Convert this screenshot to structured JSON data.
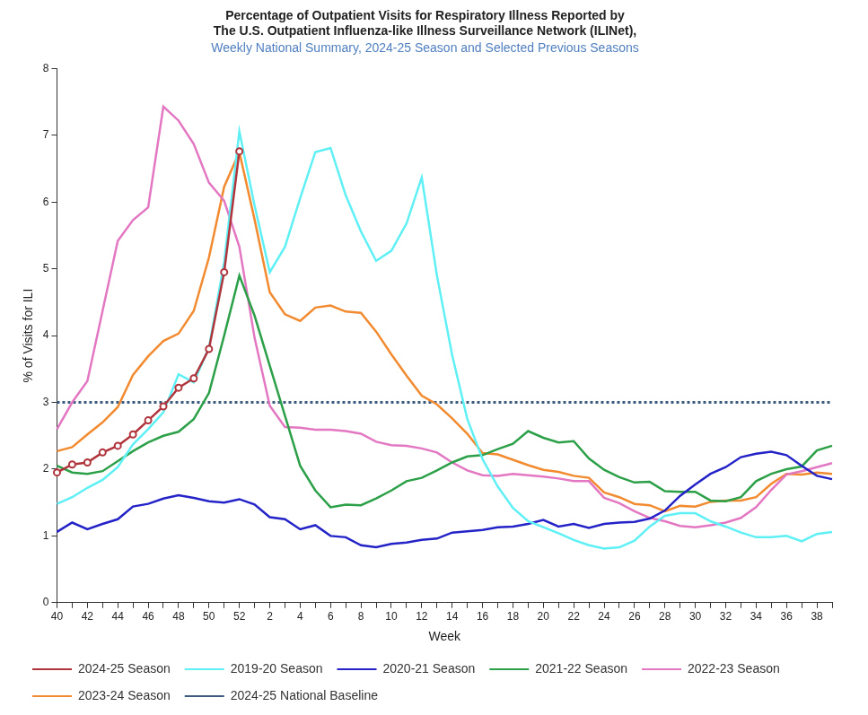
{
  "chart_data": {
    "type": "line",
    "title": [
      "Percentage of Outpatient Visits for Respiratory Illness Reported by",
      "The U.S. Outpatient Influenza-like Illness Surveillance Network (ILINet),"
    ],
    "subtitle": "Weekly National Summary, 2024-25 Season and Selected Previous Seasons",
    "x_label": "Week",
    "y_label": "% of Visits for ILI",
    "categories": [
      40,
      null,
      42,
      null,
      44,
      null,
      46,
      null,
      48,
      null,
      50,
      null,
      52,
      null,
      2,
      null,
      4,
      null,
      6,
      null,
      8,
      null,
      10,
      null,
      12,
      null,
      14,
      null,
      16,
      null,
      18,
      null,
      20,
      null,
      22,
      null,
      24,
      null,
      26,
      null,
      28,
      null,
      30,
      null,
      32,
      null,
      34,
      null,
      36,
      null,
      38,
      null
    ],
    "ylim": [
      0,
      8
    ],
    "yticks": [
      0,
      1,
      2,
      3,
      4,
      5,
      6,
      7,
      8
    ],
    "grid": false,
    "legend": "bottom",
    "series": [
      {
        "name": "2024-25 National Baseline",
        "color": "#3b5b7e",
        "line_style": "dotted",
        "marker": "none",
        "values": [
          3,
          3,
          3,
          3,
          3,
          3,
          3,
          3,
          3,
          3,
          3,
          3,
          3,
          3,
          3,
          3,
          3,
          3,
          3,
          3,
          3,
          3,
          3,
          3,
          3,
          3,
          3,
          3,
          3,
          3,
          3,
          3,
          3,
          3,
          3,
          3,
          3,
          3,
          3,
          3,
          3,
          3,
          3,
          3,
          3,
          3,
          3,
          3,
          3,
          3,
          3,
          3
        ]
      },
      {
        "name": "2024-25 Season",
        "color": "#b0343c",
        "line_style": "solid",
        "marker": "circle",
        "values": [
          1.95,
          2.07,
          2.1,
          2.25,
          2.35,
          2.52,
          2.73,
          2.94,
          3.22,
          3.36,
          3.8,
          4.95,
          6.76,
          null,
          null,
          null,
          null,
          null,
          null,
          null,
          null,
          null,
          null,
          null,
          null,
          null,
          null,
          null,
          null,
          null,
          null,
          null,
          null,
          null,
          null,
          null,
          null,
          null,
          null,
          null,
          null,
          null,
          null,
          null,
          null,
          null,
          null,
          null,
          null,
          null,
          null,
          null
        ]
      },
      {
        "name": "2023-24 Season",
        "color": "#f28a30",
        "line_style": "solid",
        "marker": "none",
        "values": [
          2.27,
          2.33,
          2.52,
          2.7,
          2.93,
          3.41,
          3.69,
          3.92,
          4.03,
          4.37,
          5.17,
          6.23,
          6.75,
          5.74,
          4.65,
          4.32,
          4.22,
          4.42,
          4.45,
          4.36,
          4.34,
          4.06,
          3.72,
          3.4,
          3.1,
          2.97,
          2.76,
          2.53,
          2.24,
          2.22,
          2.14,
          2.06,
          1.99,
          1.96,
          1.9,
          1.87,
          1.65,
          1.58,
          1.48,
          1.46,
          1.37,
          1.45,
          1.44,
          1.51,
          1.53,
          1.53,
          1.58,
          1.78,
          1.93,
          1.92,
          1.95,
          1.93
        ]
      },
      {
        "name": "2022-23 Season",
        "color": "#e377c2",
        "line_style": "solid",
        "marker": "none",
        "values": [
          2.6,
          3.0,
          3.32,
          4.37,
          5.42,
          5.73,
          5.92,
          7.43,
          7.22,
          6.87,
          6.29,
          6.02,
          5.33,
          3.97,
          2.95,
          2.63,
          2.62,
          2.59,
          2.59,
          2.57,
          2.53,
          2.41,
          2.36,
          2.35,
          2.31,
          2.25,
          2.1,
          1.98,
          1.91,
          1.9,
          1.93,
          1.91,
          1.89,
          1.86,
          1.82,
          1.82,
          1.57,
          1.49,
          1.37,
          1.27,
          1.22,
          1.15,
          1.13,
          1.16,
          1.2,
          1.27,
          1.43,
          1.69,
          1.92,
          1.97,
          2.03,
          2.09
        ]
      },
      {
        "name": "2021-22 Season",
        "color": "#2ca048",
        "line_style": "solid",
        "marker": "none",
        "values": [
          2.05,
          1.95,
          1.93,
          1.97,
          2.12,
          2.27,
          2.4,
          2.5,
          2.56,
          2.75,
          3.14,
          4.0,
          4.9,
          4.3,
          3.55,
          2.8,
          2.05,
          1.68,
          1.43,
          1.47,
          1.46,
          1.56,
          1.68,
          1.82,
          1.87,
          1.98,
          2.1,
          2.19,
          2.21,
          2.3,
          2.38,
          2.57,
          2.47,
          2.4,
          2.42,
          2.16,
          1.99,
          1.88,
          1.8,
          1.81,
          1.67,
          1.66,
          1.66,
          1.53,
          1.52,
          1.58,
          1.82,
          1.93,
          2.0,
          2.04,
          2.28,
          2.35
        ]
      },
      {
        "name": "2020-21 Season",
        "color": "#2323c8",
        "line_style": "solid",
        "marker": "none",
        "values": [
          1.06,
          1.2,
          1.1,
          1.18,
          1.25,
          1.44,
          1.48,
          1.56,
          1.61,
          1.57,
          1.52,
          1.5,
          1.55,
          1.47,
          1.28,
          1.25,
          1.1,
          1.16,
          1.0,
          0.98,
          0.86,
          0.83,
          0.88,
          0.9,
          0.94,
          0.96,
          1.05,
          1.07,
          1.09,
          1.13,
          1.14,
          1.18,
          1.24,
          1.14,
          1.18,
          1.12,
          1.18,
          1.2,
          1.21,
          1.26,
          1.38,
          1.6,
          1.77,
          1.93,
          2.03,
          2.18,
          2.23,
          2.26,
          2.21,
          2.05,
          1.9,
          1.85
        ]
      },
      {
        "name": "2019-20 Season",
        "color": "#5ef0f5",
        "line_style": "solid",
        "marker": "none",
        "values": [
          1.48,
          1.58,
          1.72,
          1.84,
          2.03,
          2.37,
          2.6,
          2.85,
          3.42,
          3.3,
          3.82,
          5.1,
          7.06,
          5.95,
          4.95,
          5.33,
          6.06,
          6.75,
          6.81,
          6.1,
          5.56,
          5.12,
          5.27,
          5.68,
          6.37,
          4.9,
          3.71,
          2.75,
          2.15,
          1.74,
          1.42,
          1.22,
          1.13,
          1.04,
          0.94,
          0.86,
          0.81,
          0.83,
          0.93,
          1.14,
          1.3,
          1.34,
          1.34,
          1.22,
          1.14,
          1.05,
          0.98,
          0.98,
          1.0,
          0.92,
          1.03,
          1.06
        ]
      }
    ]
  }
}
